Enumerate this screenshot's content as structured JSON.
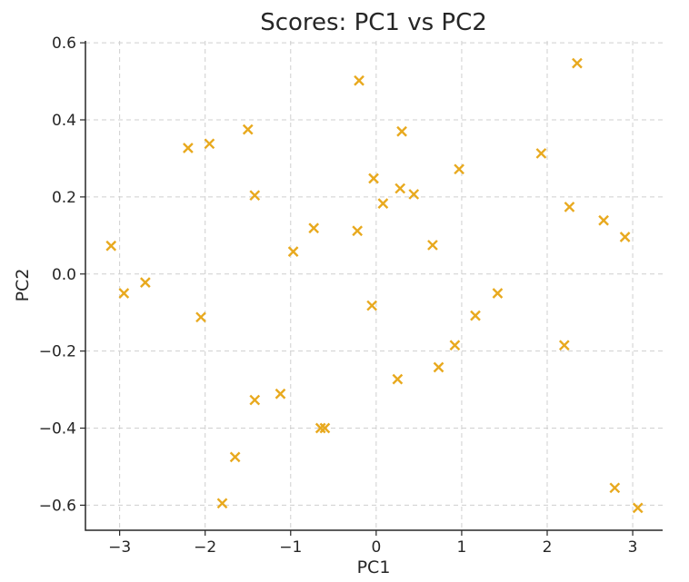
{
  "chart_data": {
    "type": "scatter",
    "title": "Scores: PC1 vs PC2",
    "xlabel": "PC1",
    "ylabel": "PC2",
    "xlim": [
      -3.4,
      3.35
    ],
    "ylim": [
      -0.665,
      0.605
    ],
    "xticks": [
      -3,
      -2,
      -1,
      0,
      1,
      2,
      3
    ],
    "yticks": [
      -0.6,
      -0.4,
      -0.2,
      0.0,
      0.2,
      0.4,
      0.6
    ],
    "xtick_labels": [
      "−3",
      "−2",
      "−1",
      "0",
      "1",
      "2",
      "3"
    ],
    "ytick_labels": [
      "−0.6",
      "−0.4",
      "−0.2",
      "0.0",
      "0.2",
      "0.4",
      "0.6"
    ],
    "grid": true,
    "marker": "x",
    "color": "#e8a91e",
    "points": [
      {
        "x": -3.1,
        "y": 0.073
      },
      {
        "x": -2.95,
        "y": -0.05
      },
      {
        "x": -2.7,
        "y": -0.022
      },
      {
        "x": -2.2,
        "y": 0.327
      },
      {
        "x": -2.05,
        "y": -0.112
      },
      {
        "x": -1.95,
        "y": 0.338
      },
      {
        "x": -1.8,
        "y": -0.595
      },
      {
        "x": -1.65,
        "y": -0.475
      },
      {
        "x": -1.5,
        "y": 0.375
      },
      {
        "x": -1.42,
        "y": 0.204
      },
      {
        "x": -1.42,
        "y": -0.327
      },
      {
        "x": -1.12,
        "y": -0.311
      },
      {
        "x": -0.97,
        "y": 0.058
      },
      {
        "x": -0.73,
        "y": 0.119
      },
      {
        "x": -0.65,
        "y": -0.4
      },
      {
        "x": -0.6,
        "y": -0.4
      },
      {
        "x": -0.22,
        "y": 0.112
      },
      {
        "x": -0.2,
        "y": 0.502
      },
      {
        "x": -0.05,
        "y": -0.082
      },
      {
        "x": -0.03,
        "y": 0.248
      },
      {
        "x": 0.08,
        "y": 0.183
      },
      {
        "x": 0.25,
        "y": -0.273
      },
      {
        "x": 0.28,
        "y": 0.222
      },
      {
        "x": 0.3,
        "y": 0.37
      },
      {
        "x": 0.44,
        "y": 0.207
      },
      {
        "x": 0.66,
        "y": 0.075
      },
      {
        "x": 0.73,
        "y": -0.242
      },
      {
        "x": 0.92,
        "y": -0.185
      },
      {
        "x": 0.97,
        "y": 0.272
      },
      {
        "x": 1.16,
        "y": -0.108
      },
      {
        "x": 1.42,
        "y": -0.05
      },
      {
        "x": 1.93,
        "y": 0.313
      },
      {
        "x": 2.2,
        "y": -0.185
      },
      {
        "x": 2.26,
        "y": 0.174
      },
      {
        "x": 2.35,
        "y": 0.547
      },
      {
        "x": 2.66,
        "y": 0.139
      },
      {
        "x": 2.79,
        "y": -0.555
      },
      {
        "x": 2.91,
        "y": 0.096
      },
      {
        "x": 3.06,
        "y": -0.607
      }
    ]
  }
}
